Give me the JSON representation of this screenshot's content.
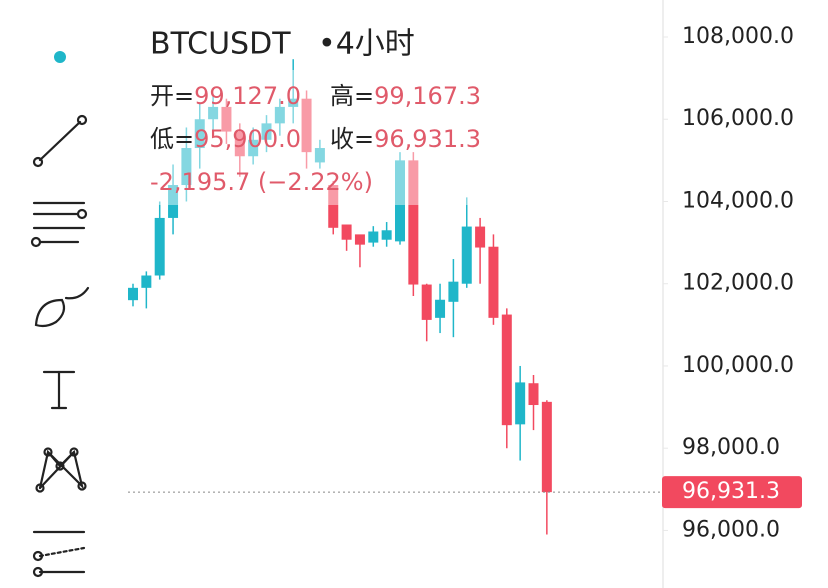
{
  "chart_data": {
    "type": "candlestick",
    "title": "BTCUSDT",
    "interval": "•4小时",
    "header": {
      "rows": [
        [
          {
            "label": "开=",
            "value": "99,127.0"
          },
          {
            "label": "高=",
            "value": "99,167.3"
          }
        ],
        [
          {
            "label": "低=",
            "value": "95,900.0"
          },
          {
            "label": "收=",
            "value": "96,931.3"
          }
        ]
      ],
      "change": "-2,195.7 (−2.22%)"
    },
    "up_color": "#1fb6c9",
    "down_color": "#f2495f",
    "open": [
      101600,
      101900,
      102200,
      103600,
      104400,
      105300,
      106000,
      106300,
      105700,
      105100,
      105500,
      105900,
      106300,
      106500,
      104950,
      104400,
      103440,
      103200,
      103000,
      103070,
      103030,
      105000,
      101980,
      101170,
      101560,
      102000,
      103390,
      102900,
      101250,
      98580,
      99580,
      99127
    ],
    "close": [
      101900,
      102200,
      103600,
      104400,
      105300,
      106000,
      106300,
      105700,
      105100,
      105500,
      105900,
      106300,
      106500,
      105200,
      105300,
      103360,
      103070,
      102950,
      103270,
      103300,
      105000,
      101980,
      101120,
      101610,
      102050,
      103390,
      102880,
      101170,
      98560,
      99600,
      99050,
      96931.3
    ],
    "high": [
      102000,
      102300,
      104000,
      104900,
      105800,
      106400,
      106600,
      106500,
      105900,
      105800,
      106100,
      106500,
      107460,
      106700,
      105500,
      104500,
      103440,
      103100,
      103400,
      103500,
      105200,
      105200,
      102000,
      102000,
      102600,
      104100,
      103600,
      103200,
      101400,
      100000,
      99780,
      99167.3
    ],
    "low": [
      101450,
      101400,
      102100,
      103200,
      104000,
      104800,
      105700,
      105400,
      104600,
      104900,
      105200,
      105600,
      105900,
      104800,
      104800,
      103200,
      102800,
      102400,
      102900,
      102900,
      102950,
      101700,
      100600,
      100800,
      100700,
      101900,
      102000,
      101000,
      98000,
      97700,
      98440,
      95900
    ],
    "ylim": [
      94600,
      108900
    ],
    "yticks": [
      {
        "value": 96000,
        "label": "96,000.0"
      },
      {
        "value": 98000,
        "label": "98,000.0"
      },
      {
        "value": 100000,
        "label": "100,000.0"
      },
      {
        "value": 102000,
        "label": "102,000.0"
      },
      {
        "value": 104000,
        "label": "104,000.0"
      },
      {
        "value": 106000,
        "label": "106,000.0"
      },
      {
        "value": 108000,
        "label": "108,000.0"
      }
    ],
    "last_price": {
      "value": 96931.3,
      "label": "96,931.3"
    }
  }
}
